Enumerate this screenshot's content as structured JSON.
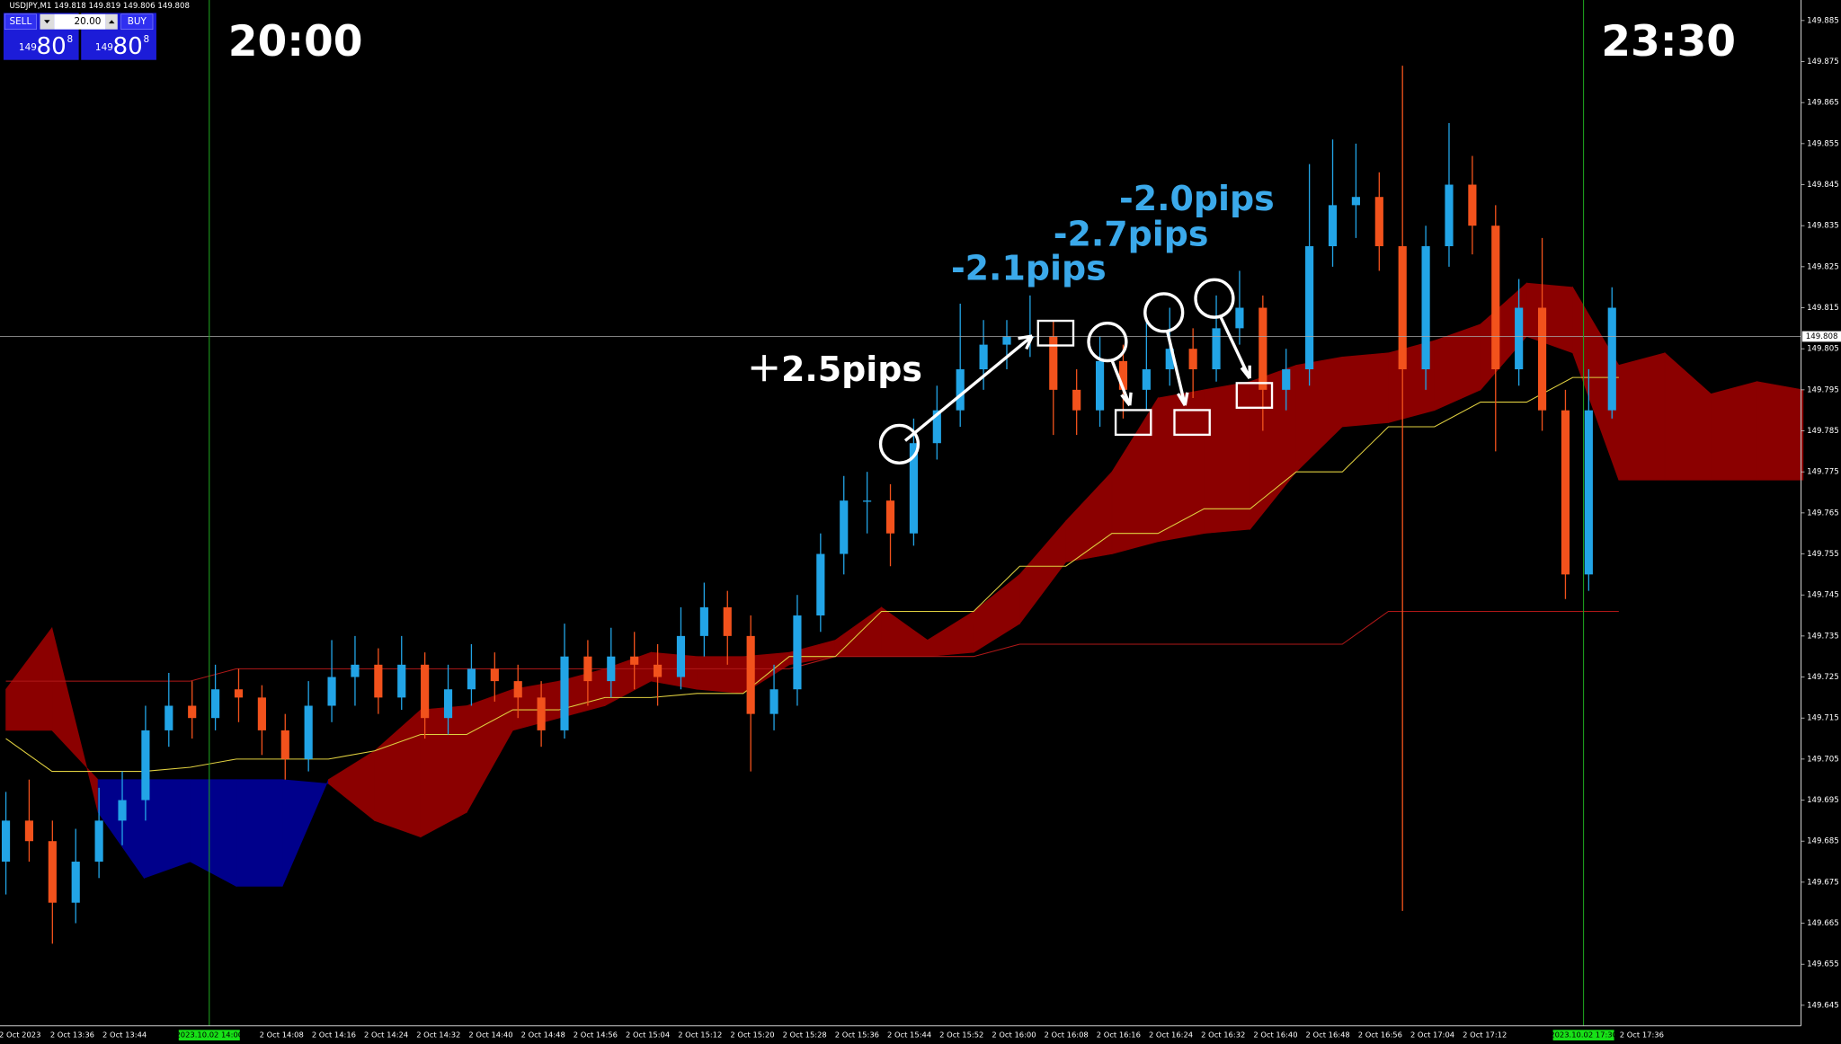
{
  "header": "USDJPY,M1  149.818 149.819 149.806 149.808",
  "panel": {
    "sell": "SELL",
    "buy": "BUY",
    "lot": "20.00",
    "sell_price": {
      "small": "149",
      "big": "80",
      "sup": "8"
    },
    "buy_price": {
      "small": "149",
      "big": "80",
      "sup": "8"
    }
  },
  "annotations": {
    "left_time": "20:00",
    "right_time": "23:30",
    "labels": [
      "＋2.5pips",
      "-2.1pips",
      "-2.7pips",
      "-2.0pips"
    ]
  },
  "chart_data": {
    "type": "candlestick",
    "ylim": [
      149.64,
      149.89
    ],
    "yticks": [
      149.645,
      149.655,
      149.665,
      149.675,
      149.685,
      149.695,
      149.705,
      149.715,
      149.725,
      149.735,
      149.745,
      149.755,
      149.765,
      149.775,
      149.785,
      149.795,
      149.805,
      149.815,
      149.825,
      149.835,
      149.845,
      149.855,
      149.865,
      149.875,
      149.885
    ],
    "bid": 149.808,
    "categories": [
      "2 Oct 2023",
      "2 Oct 13:36",
      "2 Oct 13:44",
      null,
      null,
      "2 Oct 14:08",
      "2 Oct 14:16",
      "2 Oct 14:24",
      "2 Oct 14:32",
      "2 Oct 14:40",
      "2 Oct 14:48",
      "2 Oct 14:56",
      "2 Oct 15:04",
      "2 Oct 15:12",
      "2 Oct 15:20",
      "2 Oct 15:28",
      "2 Oct 15:36",
      "2 Oct 15:44",
      "2 Oct 15:52",
      "2 Oct 16:00",
      "2 Oct 16:08",
      "2 Oct 16:16",
      "2 Oct 16:24",
      "2 Oct 16:32",
      "2 Oct 16:40",
      "2 Oct 16:48",
      "2 Oct 16:56",
      "2 Oct 17:04",
      "2 Oct 17:12",
      null,
      null,
      "2 Oct 17:36"
    ],
    "markers": [
      "2023.10.02 14:00",
      "2023.10.02 17:30"
    ],
    "up_color": "#22a4e6",
    "down_color": "#f2521c",
    "ohlc": [
      [
        149.68,
        149.697,
        149.672,
        149.69
      ],
      [
        149.69,
        149.7,
        149.68,
        149.685
      ],
      [
        149.685,
        149.69,
        149.66,
        149.67
      ],
      [
        149.67,
        149.688,
        149.665,
        149.68
      ],
      [
        149.68,
        149.698,
        149.676,
        149.69
      ],
      [
        149.69,
        149.702,
        149.684,
        149.695
      ],
      [
        149.695,
        149.718,
        149.69,
        149.712
      ],
      [
        149.712,
        149.726,
        149.708,
        149.718
      ],
      [
        149.718,
        149.724,
        149.71,
        149.715
      ],
      [
        149.715,
        149.728,
        149.712,
        149.722
      ],
      [
        149.722,
        149.727,
        149.714,
        149.72
      ],
      [
        149.72,
        149.723,
        149.706,
        149.712
      ],
      [
        149.712,
        149.716,
        149.7,
        149.705
      ],
      [
        149.705,
        149.724,
        149.702,
        149.718
      ],
      [
        149.718,
        149.734,
        149.714,
        149.725
      ],
      [
        149.725,
        149.735,
        149.718,
        149.728
      ],
      [
        149.728,
        149.732,
        149.716,
        149.72
      ],
      [
        149.72,
        149.735,
        149.717,
        149.728
      ],
      [
        149.728,
        149.731,
        149.71,
        149.715
      ],
      [
        149.715,
        149.728,
        149.711,
        149.722
      ],
      [
        149.722,
        149.733,
        149.718,
        149.727
      ],
      [
        149.727,
        149.731,
        149.719,
        149.724
      ],
      [
        149.724,
        149.728,
        149.715,
        149.72
      ],
      [
        149.72,
        149.724,
        149.708,
        149.712
      ],
      [
        149.712,
        149.738,
        149.71,
        149.73
      ],
      [
        149.73,
        149.734,
        149.718,
        149.724
      ],
      [
        149.724,
        149.737,
        149.72,
        149.73
      ],
      [
        149.73,
        149.736,
        149.722,
        149.728
      ],
      [
        149.728,
        149.733,
        149.718,
        149.725
      ],
      [
        149.725,
        149.742,
        149.722,
        149.735
      ],
      [
        149.735,
        149.748,
        149.73,
        149.742
      ],
      [
        149.742,
        149.746,
        149.728,
        149.735
      ],
      [
        149.735,
        149.74,
        149.702,
        149.716
      ],
      [
        149.716,
        149.728,
        149.712,
        149.722
      ],
      [
        149.722,
        149.745,
        149.718,
        149.74
      ],
      [
        149.74,
        149.76,
        149.736,
        149.755
      ],
      [
        149.755,
        149.774,
        149.75,
        149.768
      ],
      [
        149.768,
        149.775,
        149.76,
        149.768
      ],
      [
        149.768,
        149.772,
        149.752,
        149.76
      ],
      [
        149.76,
        149.788,
        149.757,
        149.782
      ],
      [
        149.782,
        149.796,
        149.778,
        149.79
      ],
      [
        149.79,
        149.816,
        149.786,
        149.8
      ],
      [
        149.8,
        149.812,
        149.795,
        149.806
      ],
      [
        149.806,
        149.812,
        149.8,
        149.808
      ],
      [
        149.808,
        149.818,
        149.803,
        149.808
      ],
      [
        149.808,
        149.812,
        149.784,
        149.795
      ],
      [
        149.795,
        149.8,
        149.784,
        149.79
      ],
      [
        149.79,
        149.808,
        149.786,
        149.802
      ],
      [
        149.802,
        149.806,
        149.788,
        149.795
      ],
      [
        149.795,
        149.812,
        149.79,
        149.8
      ],
      [
        149.8,
        149.815,
        149.796,
        149.805
      ],
      [
        149.805,
        149.81,
        149.793,
        149.8
      ],
      [
        149.8,
        149.818,
        149.797,
        149.81
      ],
      [
        149.81,
        149.824,
        149.806,
        149.815
      ],
      [
        149.815,
        149.818,
        149.785,
        149.795
      ],
      [
        149.795,
        149.805,
        149.79,
        149.8
      ],
      [
        149.8,
        149.85,
        149.796,
        149.83
      ],
      [
        149.83,
        149.856,
        149.825,
        149.84
      ],
      [
        149.84,
        149.855,
        149.832,
        149.842
      ],
      [
        149.842,
        149.848,
        149.824,
        149.83
      ],
      [
        149.83,
        149.874,
        149.668,
        149.8
      ],
      [
        149.8,
        149.835,
        149.795,
        149.83
      ],
      [
        149.83,
        149.86,
        149.825,
        149.845
      ],
      [
        149.845,
        149.852,
        149.828,
        149.835
      ],
      [
        149.835,
        149.84,
        149.78,
        149.8
      ],
      [
        149.8,
        149.822,
        149.796,
        149.815
      ],
      [
        149.815,
        149.832,
        149.785,
        149.79
      ],
      [
        149.79,
        149.795,
        149.744,
        149.75
      ],
      [
        149.75,
        149.8,
        149.746,
        149.79
      ],
      [
        149.79,
        149.82,
        149.788,
        149.815
      ]
    ],
    "cloud_a": [
      149.722,
      149.737,
      149.692,
      149.676,
      149.68,
      149.674,
      149.674,
      149.7,
      149.707,
      149.717,
      149.718,
      149.722,
      149.724,
      149.727,
      149.731,
      149.73,
      149.73,
      149.731,
      149.734,
      149.742,
      149.734,
      149.741,
      149.75,
      149.763,
      149.775,
      149.793,
      149.795,
      149.797,
      149.801,
      149.803,
      149.804,
      149.807,
      149.811,
      149.821,
      149.82,
      149.801,
      149.804,
      149.794,
      149.797,
      149.795
    ],
    "cloud_b": [
      149.712,
      149.712,
      149.7,
      149.7,
      149.7,
      149.7,
      149.7,
      149.699,
      149.69,
      149.686,
      149.692,
      149.712,
      149.715,
      149.718,
      149.724,
      149.722,
      149.721,
      149.728,
      149.73,
      149.73,
      149.73,
      149.731,
      149.738,
      149.753,
      149.755,
      149.758,
      149.76,
      149.761,
      149.775,
      149.786,
      149.787,
      149.79,
      149.795,
      149.808,
      149.804,
      149.773,
      149.773,
      149.773,
      149.773,
      149.773
    ],
    "cloud_up_color": "#8b0000",
    "cloud_down_color": "#00008b",
    "yellow_line": [
      149.71,
      149.702,
      149.702,
      149.702,
      149.703,
      149.705,
      149.705,
      149.705,
      149.707,
      149.711,
      149.711,
      149.717,
      149.717,
      149.72,
      149.72,
      149.721,
      149.721,
      149.73,
      149.73,
      149.741,
      149.741,
      149.741,
      149.752,
      149.752,
      149.76,
      149.76,
      149.766,
      149.766,
      149.775,
      149.775,
      149.786,
      149.786,
      149.792,
      149.792,
      149.798,
      149.798
    ],
    "yellow_color": "#e0d040",
    "red_line": [
      149.724,
      149.724,
      149.724,
      149.724,
      149.724,
      149.727,
      149.727,
      149.727,
      149.727,
      149.727,
      149.727,
      149.727,
      149.727,
      149.727,
      149.727,
      149.727,
      149.727,
      149.727,
      149.73,
      149.73,
      149.73,
      149.73,
      149.733,
      149.733,
      149.733,
      149.733,
      149.733,
      149.733,
      149.733,
      149.733,
      149.741,
      149.741,
      149.741,
      149.741,
      149.741,
      149.741
    ],
    "red_color": "#b01818"
  }
}
